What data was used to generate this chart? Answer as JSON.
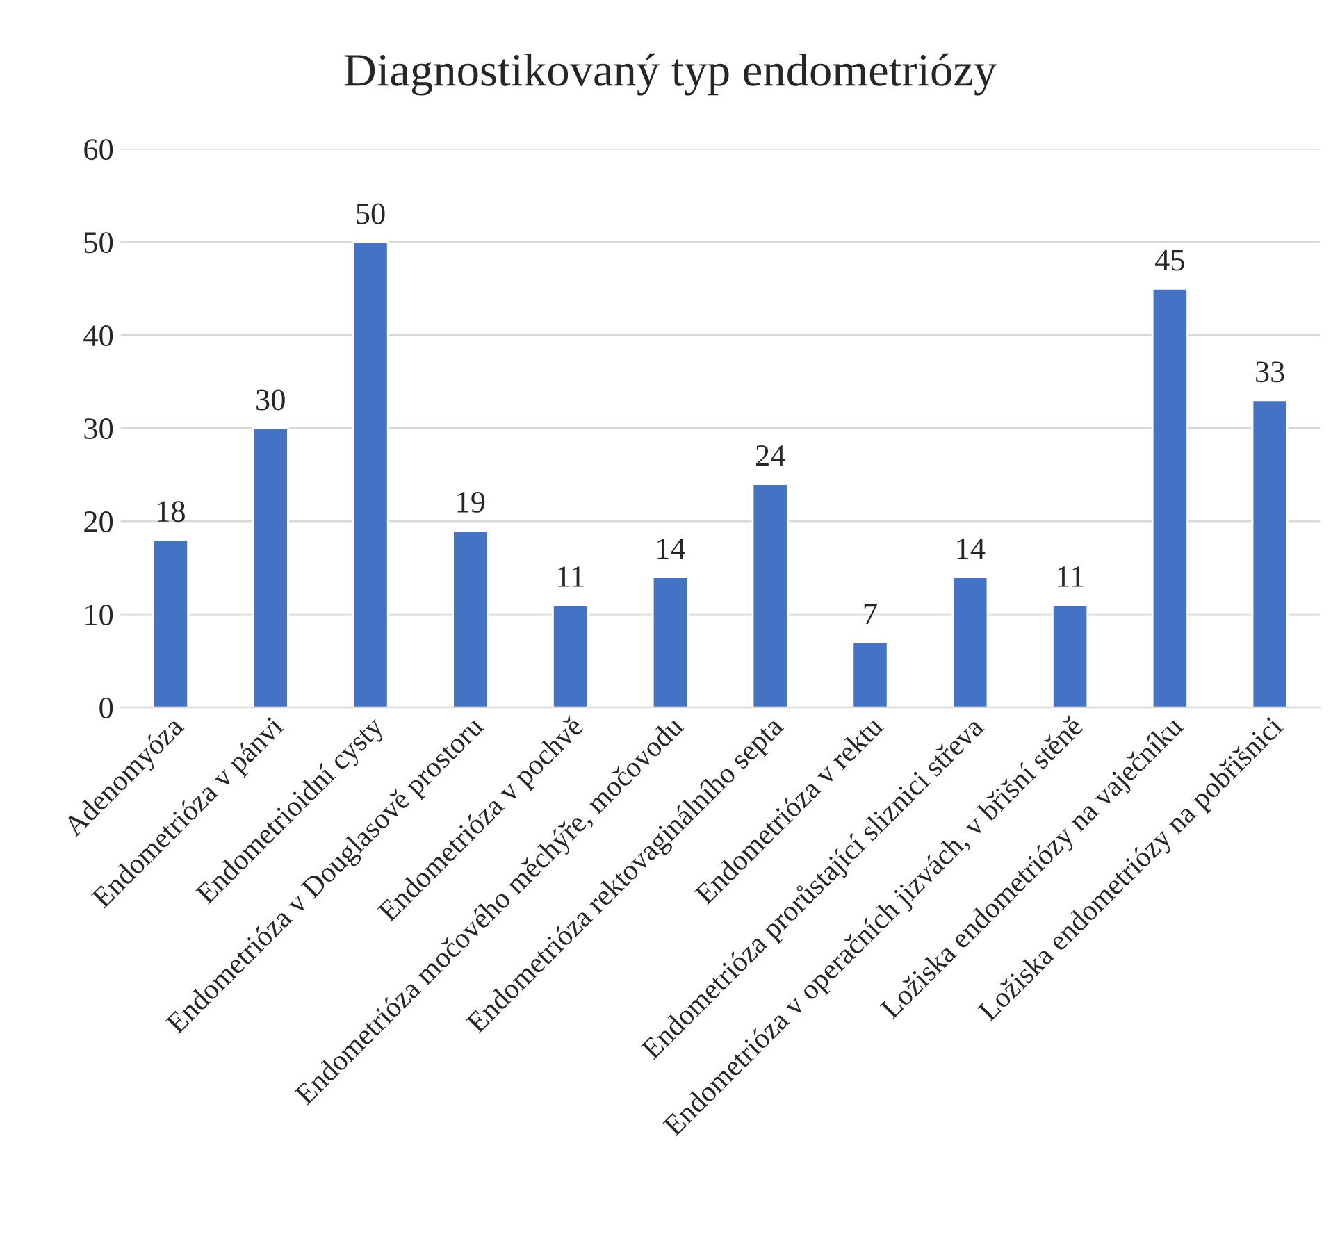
{
  "chart_data": {
    "type": "bar",
    "title": "Diagnostikovaný typ endometriózy",
    "categories": [
      "Adenomyóza",
      "Endometrióza v pánvi",
      "Endometrioidní cysty",
      "Endometrióza v Douglasově prostoru",
      "Endometrióza v pochvě",
      "Endometrióza močového měchýře, močovodu",
      "Endometrióza rektovaginálního septa",
      "Endometrióza v rektu",
      "Endometrióza prorůstající sliznici střeva",
      "Endometrióza v operačních jizvách, v břišní stěně",
      "Ložiska endometriózy na vaječníku",
      "Ložiska endometriózy na pobřišnici"
    ],
    "values": [
      18,
      30,
      50,
      19,
      11,
      14,
      24,
      7,
      14,
      11,
      45,
      33
    ],
    "color": "#4472c4",
    "ylim": [
      0,
      60
    ],
    "yticks": [
      0,
      10,
      20,
      30,
      40,
      50,
      60
    ],
    "grid": "y",
    "data_labels": true
  }
}
